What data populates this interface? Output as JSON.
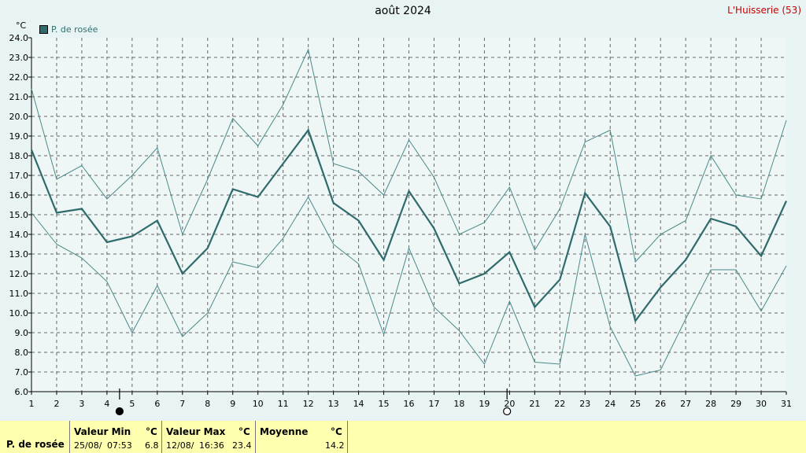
{
  "title": "août 2024",
  "station": "L'Huisserie (53)",
  "legend_label": "P. de rosée",
  "colors": {
    "background": "#e8f3f3",
    "series": "#2f6b6b",
    "thin": "#4a8a8a",
    "station": "#cc0000",
    "stats_bg": "#ffffb0"
  },
  "moon_icons": {
    "new_moon": "filled-circle-icon",
    "full_moon": "open-circle-icon"
  },
  "chart_data": {
    "type": "line",
    "yunit": "°C",
    "ylim": [
      6.0,
      24.0
    ],
    "yticks": [
      "6.0",
      "7.0",
      "8.0",
      "9.0",
      "10.0",
      "11.0",
      "12.0",
      "13.0",
      "14.0",
      "15.0",
      "16.0",
      "17.0",
      "18.0",
      "19.0",
      "20.0",
      "21.0",
      "22.0",
      "23.0",
      "24.0"
    ],
    "x": [
      1,
      2,
      3,
      4,
      5,
      6,
      7,
      8,
      9,
      10,
      11,
      12,
      13,
      14,
      15,
      16,
      17,
      18,
      19,
      20,
      21,
      22,
      23,
      24,
      25,
      26,
      27,
      28,
      29,
      30,
      31
    ],
    "grid": true,
    "legend_position": "top-left",
    "series": [
      {
        "name": "P. de rosée",
        "role": "mean",
        "values": [
          18.3,
          15.1,
          15.3,
          13.6,
          13.9,
          14.7,
          12.0,
          13.3,
          16.3,
          15.9,
          17.6,
          19.3,
          15.6,
          14.7,
          12.7,
          16.2,
          14.3,
          11.5,
          12.0,
          13.1,
          10.3,
          11.7,
          16.1,
          14.4,
          9.6,
          11.3,
          12.7,
          14.8,
          14.4,
          12.9,
          15.7
        ]
      },
      {
        "role": "max",
        "values": [
          21.4,
          16.8,
          17.5,
          15.8,
          17.0,
          18.4,
          14.0,
          16.8,
          19.9,
          18.5,
          20.6,
          23.4,
          17.6,
          17.2,
          16.0,
          18.8,
          16.9,
          14.0,
          14.6,
          16.4,
          13.2,
          15.3,
          18.7,
          19.3,
          12.6,
          14.0,
          14.7,
          18.0,
          16.0,
          15.8,
          19.8
        ]
      },
      {
        "role": "min",
        "values": [
          15.1,
          13.5,
          12.8,
          11.6,
          9.0,
          11.4,
          8.8,
          10.0,
          12.6,
          12.3,
          13.8,
          15.9,
          13.5,
          12.5,
          8.9,
          13.3,
          10.3,
          9.1,
          7.4,
          10.6,
          7.5,
          7.4,
          14.0,
          9.3,
          6.8,
          7.1,
          9.7,
          12.2,
          12.2,
          10.1,
          12.4
        ]
      }
    ],
    "moon_phase_days": {
      "new_moon": 4.5,
      "full_moon": 19.9
    }
  },
  "stats": {
    "row_label": "P. de rosée",
    "min_header": "Valeur Min",
    "max_header": "Valeur Max",
    "mean_header": "Moyenne",
    "unit": "°C",
    "min_date": "25/08/",
    "min_time": "07:53",
    "min_value": "6.8",
    "max_date": "12/08/",
    "max_time": "16:36",
    "max_value": "23.4",
    "mean_value": "14.2"
  }
}
